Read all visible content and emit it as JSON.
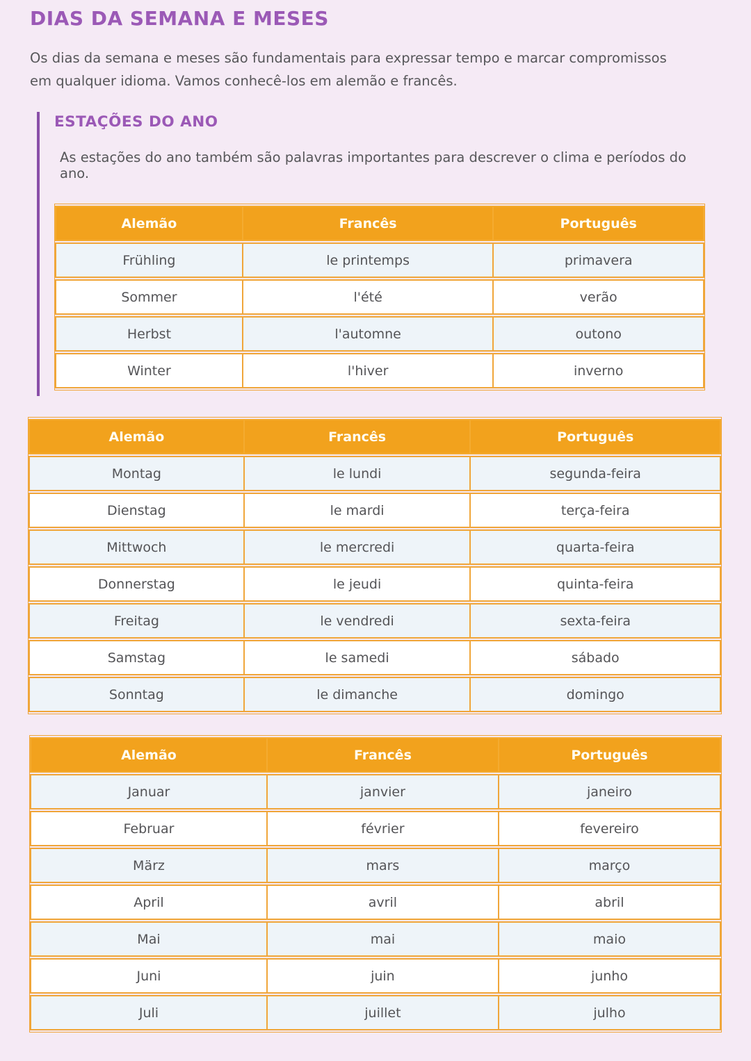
{
  "page": {
    "title": "DIAS DA SEMANA E MESES",
    "intro": "Os dias da semana e meses são fundamentais para expressar tempo e marcar compromissos em qualquer idioma. Vamos conhecê-los em alemão e francês."
  },
  "section": {
    "heading": "ESTAÇÕES DO ANO",
    "description": "As estações do ano também são palavras importantes para descrever o clima e períodos do ano."
  },
  "colors": {
    "accent_purple": "#9b59b6",
    "section_bar_purple": "#8a4fa8",
    "table_header_orange": "#f2a21d",
    "table_border_orange": "#f0a63a",
    "row_alt_blue": "#eef4f9",
    "page_background": "#f5eaf5"
  },
  "tables": {
    "headers": [
      "Alemão",
      "Francês",
      "Português"
    ],
    "seasons": {
      "rows": [
        [
          "Frühling",
          "le printemps",
          "primavera"
        ],
        [
          "Sommer",
          "l'été",
          "verão"
        ],
        [
          "Herbst",
          "l'automne",
          "outono"
        ],
        [
          "Winter",
          "l'hiver",
          "inverno"
        ]
      ]
    },
    "days": {
      "rows": [
        [
          "Montag",
          "le lundi",
          "segunda-feira"
        ],
        [
          "Dienstag",
          "le mardi",
          "terça-feira"
        ],
        [
          "Mittwoch",
          "le mercredi",
          "quarta-feira"
        ],
        [
          "Donnerstag",
          "le jeudi",
          "quinta-feira"
        ],
        [
          "Freitag",
          "le vendredi",
          "sexta-feira"
        ],
        [
          "Samstag",
          "le samedi",
          "sábado"
        ],
        [
          "Sonntag",
          "le dimanche",
          "domingo"
        ]
      ]
    },
    "months": {
      "rows": [
        [
          "Januar",
          "janvier",
          "janeiro"
        ],
        [
          "Februar",
          "février",
          "fevereiro"
        ],
        [
          "März",
          "mars",
          "março"
        ],
        [
          "April",
          "avril",
          "abril"
        ],
        [
          "Mai",
          "mai",
          "maio"
        ],
        [
          "Juni",
          "juin",
          "junho"
        ],
        [
          "Juli",
          "juillet",
          "julho"
        ]
      ]
    }
  }
}
